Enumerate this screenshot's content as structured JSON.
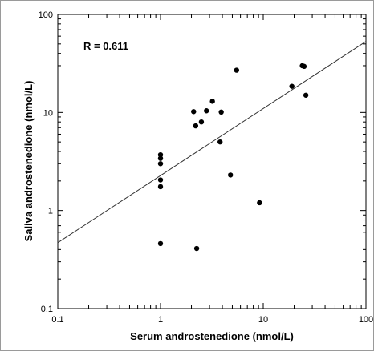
{
  "chart_data": {
    "type": "scatter",
    "title": "",
    "xlabel": "Serum androstenedione (nmol/L)",
    "ylabel": "Saliva androstenedione (nmol/L)",
    "xscale": "log",
    "yscale": "log",
    "xlim": [
      0.1,
      100
    ],
    "ylim": [
      0.1,
      100
    ],
    "x_ticks": [
      "0.1",
      "1",
      "10",
      "100"
    ],
    "y_ticks": [
      "0.1",
      "1",
      "10",
      "100"
    ],
    "grid": false,
    "legend": "none",
    "annotation": "R = 0.611",
    "marker_color": "#000000",
    "line_color": "#333333",
    "points": [
      {
        "x": 1.0,
        "y": 0.46
      },
      {
        "x": 1.0,
        "y": 1.75
      },
      {
        "x": 1.0,
        "y": 2.05
      },
      {
        "x": 1.0,
        "y": 3.0
      },
      {
        "x": 1.0,
        "y": 3.4
      },
      {
        "x": 1.0,
        "y": 3.7
      },
      {
        "x": 2.1,
        "y": 10.2
      },
      {
        "x": 2.2,
        "y": 7.3
      },
      {
        "x": 2.25,
        "y": 0.41
      },
      {
        "x": 2.5,
        "y": 8.0
      },
      {
        "x": 2.8,
        "y": 10.4
      },
      {
        "x": 3.2,
        "y": 13.0
      },
      {
        "x": 3.8,
        "y": 5.0
      },
      {
        "x": 3.9,
        "y": 10.1
      },
      {
        "x": 4.8,
        "y": 2.3
      },
      {
        "x": 5.5,
        "y": 27.0
      },
      {
        "x": 9.2,
        "y": 1.2
      },
      {
        "x": 19.0,
        "y": 18.5
      },
      {
        "x": 24.0,
        "y": 30.0
      },
      {
        "x": 25.0,
        "y": 29.5
      },
      {
        "x": 26.0,
        "y": 15.0
      }
    ],
    "fit_line": {
      "x": [
        0.1,
        100
      ],
      "y": [
        0.47,
        53
      ]
    }
  }
}
